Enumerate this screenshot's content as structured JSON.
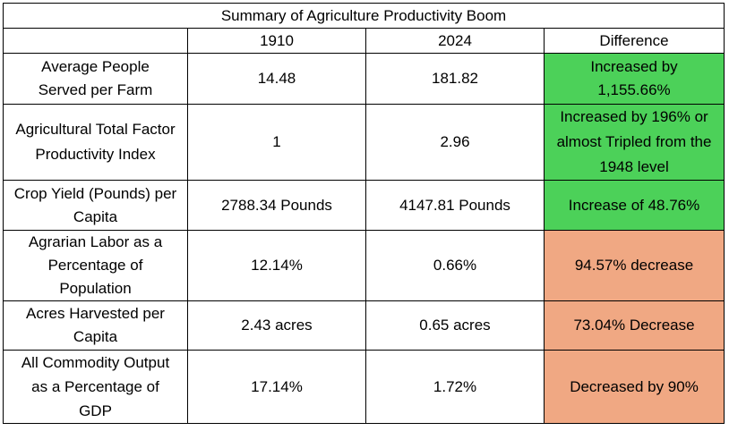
{
  "table": {
    "title": "Summary of Agriculture Productivity Boom",
    "headers": [
      "",
      "1910",
      "2024",
      "Difference"
    ],
    "rows": [
      {
        "label": "Average People Served per Farm",
        "v1910": "14.48",
        "v2024": "181.82",
        "difference": "Increased by 1,155.66%",
        "status": "increase"
      },
      {
        "label": "Agricultural Total Factor Productivity Index",
        "v1910": "1",
        "v2024": "2.96",
        "difference": "Increased by 196% or almost Tripled from the 1948 level",
        "status": "increase"
      },
      {
        "label": "Crop Yield (Pounds) per Capita",
        "v1910": "2788.34 Pounds",
        "v2024": "4147.81 Pounds",
        "difference": "Increase of 48.76%",
        "status": "increase"
      },
      {
        "label": "Agrarian Labor as a Percentage of Population",
        "v1910": "12.14%",
        "v2024": "0.66%",
        "difference": "94.57% decrease",
        "status": "decrease"
      },
      {
        "label": "Acres Harvested per Capita",
        "v1910": "2.43 acres",
        "v2024": "0.65 acres",
        "difference": "73.04% Decrease",
        "status": "decrease"
      },
      {
        "label": "All Commodity Output as a Percentage of GDP",
        "v1910": "17.14%",
        "v2024": "1.72%",
        "difference": "Decreased by 90%",
        "status": "decrease"
      }
    ]
  },
  "colors": {
    "increase": "#4cd159",
    "decrease": "#f0a883",
    "border": "#000000"
  }
}
